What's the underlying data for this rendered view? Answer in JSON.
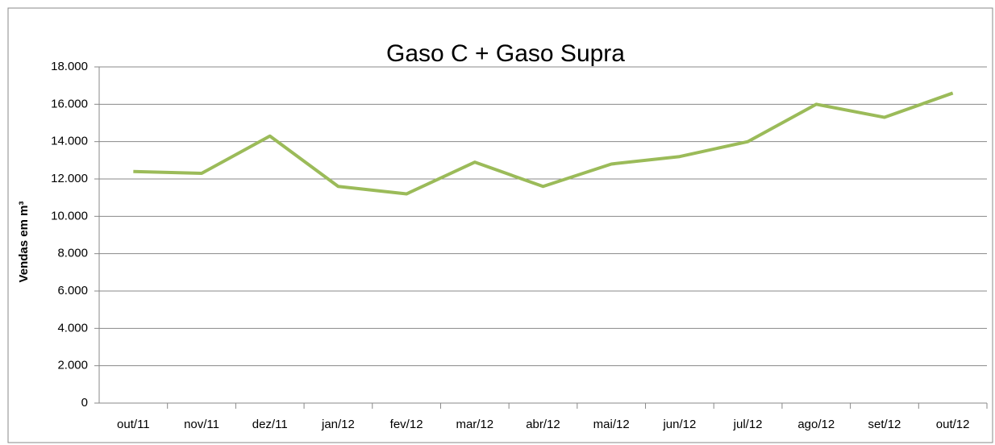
{
  "chart_data": {
    "type": "line",
    "title": "Gaso C + Gaso Supra",
    "y_label": "Vendas em m³",
    "categories": [
      "out/11",
      "nov/11",
      "dez/11",
      "jan/12",
      "fev/12",
      "mar/12",
      "abr/12",
      "mai/12",
      "jun/12",
      "jul/12",
      "ago/12",
      "set/12",
      "out/12"
    ],
    "series": [
      {
        "name": "Gaso C + Gaso Supra",
        "color": "#9bbb59",
        "values": [
          12400,
          12300,
          14300,
          11600,
          11200,
          12900,
          11600,
          12800,
          13200,
          14000,
          16000,
          15300,
          16600
        ]
      }
    ],
    "ylim": [
      0,
      18000
    ],
    "yticks": [
      0,
      {
        "value": 2000,
        "label": "2.000"
      },
      {
        "value": 4000,
        "label": "4.000"
      },
      {
        "value": 6000,
        "label": "6.000"
      },
      {
        "value": 8000,
        "label": "8.000"
      },
      {
        "value": 10000,
        "label": "10.000"
      },
      {
        "value": 12000,
        "label": "12.000"
      },
      {
        "value": 14000,
        "label": "14.000"
      },
      {
        "value": 16000,
        "label": "16.000"
      },
      {
        "value": 18000,
        "label": "18.000"
      }
    ],
    "grid": true
  }
}
